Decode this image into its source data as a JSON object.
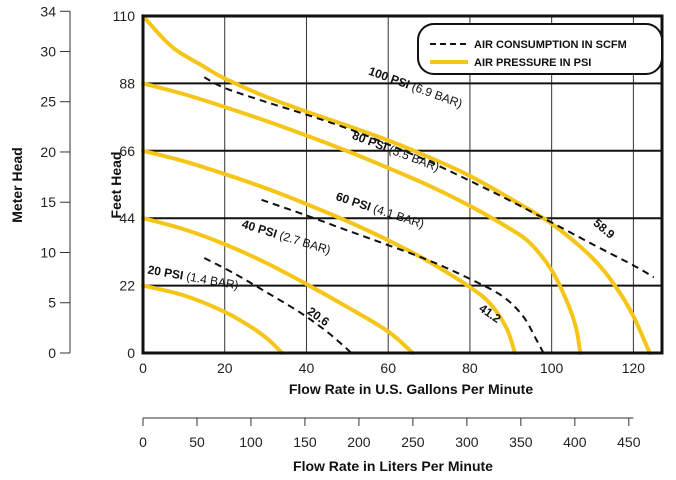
{
  "chart_data": {
    "type": "line",
    "xlabel": "Flow Rate in U.S. Gallons Per Minute",
    "xlabel_secondary": "Flow Rate in Liters Per Minute",
    "ylabel": "Feet Head",
    "ylabel_secondary": "Meter Head",
    "xlim": [
      0,
      127
    ],
    "ylim": [
      0,
      110
    ],
    "x_ticks": [
      "0",
      "20",
      "40",
      "60",
      "80",
      "100",
      "120"
    ],
    "y_ticks": [
      "0",
      "22",
      "44",
      "66",
      "88",
      "110"
    ],
    "meter_ticks": [
      "0",
      "5",
      "10",
      "15",
      "20",
      "25",
      "30",
      "34"
    ],
    "liters_ticks": [
      "0",
      "50",
      "100",
      "150",
      "200",
      "250",
      "300",
      "350",
      "400",
      "450"
    ],
    "grid": true,
    "legend": {
      "position": "top-right",
      "entries": [
        {
          "label": "AIR CONSUMPTION IN SCFM",
          "style": "dashed"
        },
        {
          "label": "AIR PRESSURE IN PSI",
          "style": "solid"
        }
      ]
    },
    "colors": {
      "pressure": "#f5c518",
      "consumption": "#111111",
      "grid": "#222222"
    },
    "series": [
      {
        "name": "20 PSI",
        "sub": "(1.4 BAR)",
        "kind": "pressure",
        "points": [
          [
            0,
            22
          ],
          [
            10,
            18.8
          ],
          [
            20,
            13.4
          ],
          [
            27,
            8
          ],
          [
            31,
            4
          ],
          [
            34,
            0
          ]
        ]
      },
      {
        "name": "40 PSI",
        "sub": "(2.7 BAR)",
        "kind": "pressure",
        "points": [
          [
            0,
            44
          ],
          [
            10,
            40.4
          ],
          [
            20,
            35.5
          ],
          [
            30,
            29.5
          ],
          [
            40,
            22.5
          ],
          [
            50,
            15
          ],
          [
            60,
            7
          ],
          [
            66,
            0
          ]
        ]
      },
      {
        "name": "60 PSI",
        "sub": "(4.1 BAR)",
        "kind": "pressure",
        "points": [
          [
            0,
            66
          ],
          [
            10,
            62.6
          ],
          [
            20,
            58.4
          ],
          [
            30,
            53.8
          ],
          [
            40,
            48.6
          ],
          [
            50,
            43
          ],
          [
            60,
            36.8
          ],
          [
            70,
            29.8
          ],
          [
            80,
            21.5
          ],
          [
            85,
            16
          ],
          [
            89,
            8
          ],
          [
            91,
            0
          ]
        ]
      },
      {
        "name": "80 PSI",
        "sub": "(5.5 BAR)",
        "kind": "pressure",
        "points": [
          [
            0,
            88
          ],
          [
            10,
            84.5
          ],
          [
            20,
            80.3
          ],
          [
            30,
            75.8
          ],
          [
            40,
            71
          ],
          [
            50,
            65.9
          ],
          [
            60,
            60.4
          ],
          [
            70,
            54.6
          ],
          [
            80,
            48
          ],
          [
            90,
            40.4
          ],
          [
            95,
            35.5
          ],
          [
            100,
            27
          ],
          [
            104,
            16
          ],
          [
            106,
            8
          ],
          [
            107,
            0
          ]
        ]
      },
      {
        "name": "100 PSI",
        "sub": "(6.9 BAR)",
        "kind": "pressure",
        "points": [
          [
            0,
            110
          ],
          [
            4,
            104
          ],
          [
            8,
            99
          ],
          [
            15,
            93.4
          ],
          [
            20,
            89.6
          ],
          [
            30,
            83.7
          ],
          [
            40,
            78.8
          ],
          [
            50,
            74.2
          ],
          [
            60,
            69.4
          ],
          [
            70,
            63.9
          ],
          [
            80,
            57.8
          ],
          [
            90,
            50.3
          ],
          [
            100,
            42.2
          ],
          [
            110,
            31
          ],
          [
            116,
            21
          ],
          [
            120,
            12
          ],
          [
            124,
            0
          ]
        ]
      },
      {
        "name": "20.6",
        "kind": "consumption",
        "points": [
          [
            15,
            31
          ],
          [
            22,
            26.2
          ],
          [
            30,
            20
          ],
          [
            38,
            13.6
          ],
          [
            44,
            8
          ],
          [
            48,
            3.6
          ],
          [
            51,
            0
          ]
        ]
      },
      {
        "name": "41.2",
        "kind": "consumption",
        "points": [
          [
            29,
            50
          ],
          [
            40,
            44.9
          ],
          [
            50,
            40
          ],
          [
            60,
            35.2
          ],
          [
            70,
            30.2
          ],
          [
            80,
            24.2
          ],
          [
            88,
            18.5
          ],
          [
            93,
            12
          ],
          [
            96,
            5
          ],
          [
            98,
            0
          ]
        ]
      },
      {
        "name": "58.9",
        "kind": "consumption",
        "points": [
          [
            15,
            90
          ],
          [
            20,
            86.5
          ],
          [
            30,
            82
          ],
          [
            40,
            77.8
          ],
          [
            50,
            73.3
          ],
          [
            60,
            68.1
          ],
          [
            70,
            62.5
          ],
          [
            80,
            56.2
          ],
          [
            90,
            49.6
          ],
          [
            100,
            42.6
          ],
          [
            110,
            35.5
          ],
          [
            120,
            28.6
          ],
          [
            125,
            24.7
          ]
        ]
      }
    ]
  }
}
